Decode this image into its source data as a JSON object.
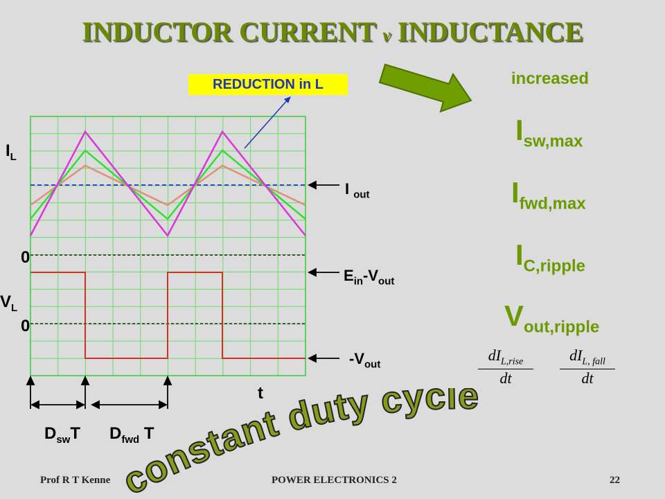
{
  "title": {
    "part1": "INDUCTOR CURRENT ",
    "v": "v",
    "part2": " INDUCTANCE"
  },
  "callout": "REDUCTION in L",
  "labels": {
    "il_main": "I",
    "il_sub": "L",
    "iout_main": "I ",
    "iout_sub": "out",
    "zero_top": "0",
    "ein_main": "E",
    "ein_sub": "in",
    "ein_mid": "-V",
    "ein_sub2": "out",
    "vl_main": "V",
    "vl_sub": "L",
    "zero_bottom": "0",
    "negv_main": "-V",
    "negv_sub": "out",
    "t": "t",
    "dsw_main": "D",
    "dsw_sub": "sw",
    "dsw_t": "T",
    "dfwd_main": "D",
    "dfwd_sub": "fwd",
    "dfwd_t": " T"
  },
  "right_panel": {
    "increased": "increased",
    "isw_main": "I",
    "isw_sub": "sw,max",
    "ifwd_main": "I",
    "ifwd_sub": "fwd,max",
    "ic_main": "I",
    "ic_sub": "C,ripple",
    "vout_main": "V",
    "vout_sub": "out,ripple",
    "rise_num": "dI",
    "rise_sub": "L,rise",
    "rise_den": "dt",
    "fall_num": "dI",
    "fall_sub": "L, fall",
    "fall_den": "dt"
  },
  "wordart": "constant duty cycle",
  "footer": {
    "left": "Prof R T Kenne",
    "mid": "POWER ELECTRONICS 2",
    "right": "22"
  },
  "colors": {
    "title": "#6b8a00",
    "grid": "#66dd66",
    "magenta": "#dd33dd",
    "green_wave": "#33dd33",
    "salmon": "#e0907a",
    "dashed_blue": "#3344cc",
    "square": "#cc3322",
    "wordart": "#8a9a1a"
  }
}
